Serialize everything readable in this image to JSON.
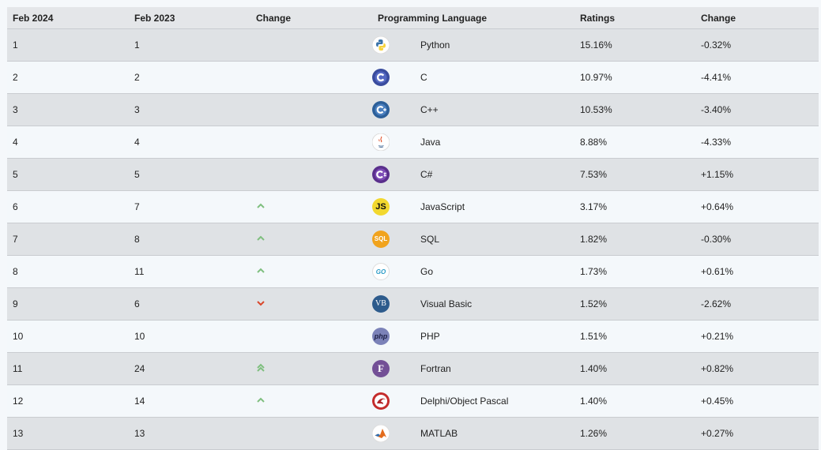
{
  "headers": {
    "feb2024": "Feb 2024",
    "feb2023": "Feb 2023",
    "change": "Change",
    "language": "Programming Language",
    "ratings": "Ratings",
    "change2": "Change"
  },
  "rows": [
    {
      "now": "1",
      "prev": "1",
      "trend": "none",
      "lang": "Python",
      "rating": "15.16%",
      "change": "-0.32%",
      "icon": "python-icon"
    },
    {
      "now": "2",
      "prev": "2",
      "trend": "none",
      "lang": "C",
      "rating": "10.97%",
      "change": "-4.41%",
      "icon": "c-icon"
    },
    {
      "now": "3",
      "prev": "3",
      "trend": "none",
      "lang": "C++",
      "rating": "10.53%",
      "change": "-3.40%",
      "icon": "cpp-icon"
    },
    {
      "now": "4",
      "prev": "4",
      "trend": "none",
      "lang": "Java",
      "rating": "8.88%",
      "change": "-4.33%",
      "icon": "java-icon"
    },
    {
      "now": "5",
      "prev": "5",
      "trend": "none",
      "lang": "C#",
      "rating": "7.53%",
      "change": "+1.15%",
      "icon": "csharp-icon"
    },
    {
      "now": "6",
      "prev": "7",
      "trend": "up",
      "lang": "JavaScript",
      "rating": "3.17%",
      "change": "+0.64%",
      "icon": "javascript-icon",
      "badge": "JS"
    },
    {
      "now": "7",
      "prev": "8",
      "trend": "up",
      "lang": "SQL",
      "rating": "1.82%",
      "change": "-0.30%",
      "icon": "sql-icon",
      "badge": "SQL"
    },
    {
      "now": "8",
      "prev": "11",
      "trend": "up",
      "lang": "Go",
      "rating": "1.73%",
      "change": "+0.61%",
      "icon": "go-icon",
      "badge": "GO"
    },
    {
      "now": "9",
      "prev": "6",
      "trend": "down",
      "lang": "Visual Basic",
      "rating": "1.52%",
      "change": "-2.62%",
      "icon": "visual-basic-icon",
      "badge": "VB"
    },
    {
      "now": "10",
      "prev": "10",
      "trend": "none",
      "lang": "PHP",
      "rating": "1.51%",
      "change": "+0.21%",
      "icon": "php-icon",
      "badge": "php"
    },
    {
      "now": "11",
      "prev": "24",
      "trend": "upup",
      "lang": "Fortran",
      "rating": "1.40%",
      "change": "+0.82%",
      "icon": "fortran-icon",
      "badge": "F"
    },
    {
      "now": "12",
      "prev": "14",
      "trend": "up",
      "lang": "Delphi/Object Pascal",
      "rating": "1.40%",
      "change": "+0.45%",
      "icon": "delphi-icon"
    },
    {
      "now": "13",
      "prev": "13",
      "trend": "none",
      "lang": "MATLAB",
      "rating": "1.26%",
      "change": "+0.27%",
      "icon": "matlab-icon"
    }
  ],
  "colors": {
    "up": "#7fbf7f",
    "down": "#d9472b",
    "odd_row": "#dfe2e5",
    "even_row": "#f4f8fb"
  }
}
